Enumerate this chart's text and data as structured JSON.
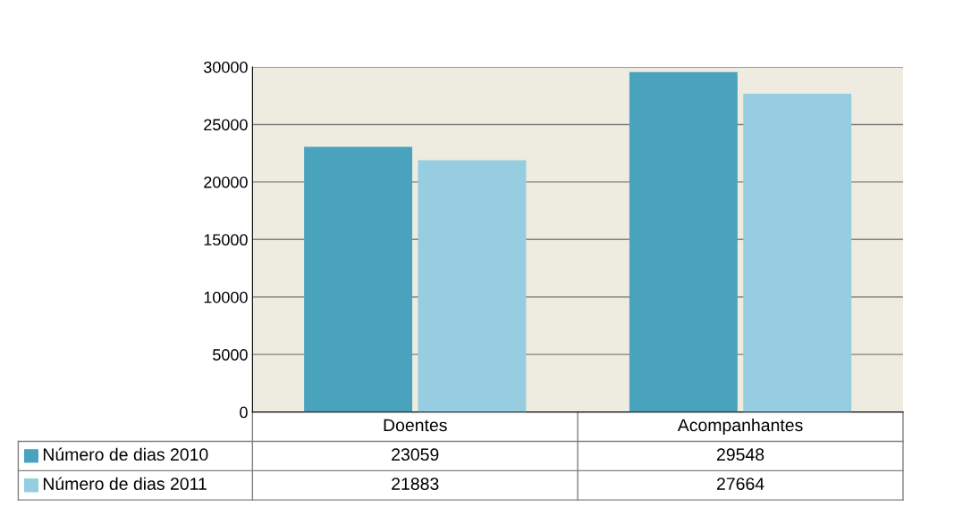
{
  "chart_data": {
    "type": "bar",
    "categories": [
      "Doentes",
      "Acompanhantes"
    ],
    "series": [
      {
        "name": "Número de dias 2010",
        "color": "#4aa3bd",
        "values": [
          23059,
          29548
        ]
      },
      {
        "name": "Número de dias 2011",
        "color": "#96cde0",
        "values": [
          21883,
          27664
        ]
      }
    ],
    "ylim": [
      0,
      30000
    ],
    "yticks": [
      0,
      5000,
      10000,
      15000,
      20000,
      25000,
      30000
    ],
    "grid": "y",
    "legend": "bottom",
    "data_labels": true
  }
}
